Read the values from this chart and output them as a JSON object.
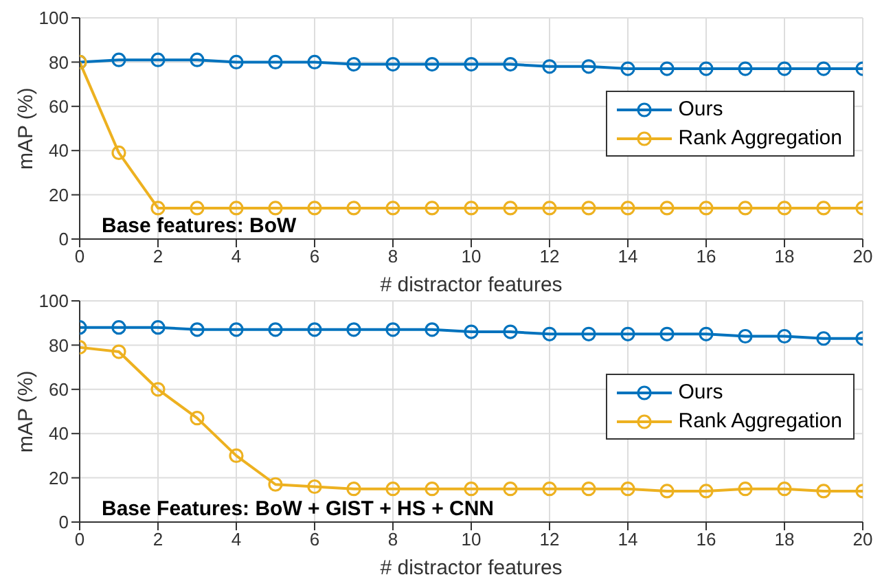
{
  "chart_data": [
    {
      "type": "line",
      "xlabel": "# distractor features",
      "ylabel": "mAP (%)",
      "annotations": [
        "Base features: BoW"
      ],
      "x": [
        0,
        1,
        2,
        3,
        4,
        5,
        6,
        7,
        8,
        9,
        10,
        11,
        12,
        13,
        14,
        15,
        16,
        17,
        18,
        19,
        20
      ],
      "series": [
        {
          "name": "Ours",
          "color": "#0072bd",
          "values": [
            80,
            81,
            81,
            81,
            80,
            80,
            80,
            79,
            79,
            79,
            79,
            79,
            78,
            78,
            77,
            77,
            77,
            77,
            77,
            77,
            77
          ]
        },
        {
          "name": "Rank Aggregation",
          "color": "#edb120",
          "values": [
            80,
            39,
            14,
            14,
            14,
            14,
            14,
            14,
            14,
            14,
            14,
            14,
            14,
            14,
            14,
            14,
            14,
            14,
            14,
            14,
            14
          ]
        }
      ],
      "xlim": [
        0,
        20
      ],
      "xticks": [
        0,
        2,
        4,
        6,
        8,
        10,
        12,
        14,
        16,
        18,
        20
      ],
      "ylim": [
        0,
        100
      ],
      "yticks": [
        0,
        20,
        40,
        60,
        80,
        100
      ],
      "grid": true,
      "legend": "right",
      "marker": "circle",
      "line_style": "solid"
    },
    {
      "type": "line",
      "xlabel": "# distractor features",
      "ylabel": "mAP (%)",
      "annotations": [
        "Base Features: BoW + GIST + HS + CNN"
      ],
      "x": [
        0,
        1,
        2,
        3,
        4,
        5,
        6,
        7,
        8,
        9,
        10,
        11,
        12,
        13,
        14,
        15,
        16,
        17,
        18,
        19,
        20
      ],
      "series": [
        {
          "name": "Ours",
          "color": "#0072bd",
          "values": [
            88,
            88,
            88,
            87,
            87,
            87,
            87,
            87,
            87,
            87,
            86,
            86,
            85,
            85,
            85,
            85,
            85,
            84,
            84,
            83,
            83
          ]
        },
        {
          "name": "Rank Aggregation",
          "color": "#edb120",
          "values": [
            79,
            77,
            60,
            47,
            30,
            17,
            16,
            15,
            15,
            15,
            15,
            15,
            15,
            15,
            15,
            14,
            14,
            15,
            15,
            14,
            14
          ]
        }
      ],
      "xlim": [
        0,
        20
      ],
      "xticks": [
        0,
        2,
        4,
        6,
        8,
        10,
        12,
        14,
        16,
        18,
        20
      ],
      "ylim": [
        0,
        100
      ],
      "yticks": [
        0,
        20,
        40,
        60,
        80,
        100
      ],
      "grid": true,
      "legend": "right",
      "marker": "circle",
      "line_style": "solid"
    }
  ]
}
